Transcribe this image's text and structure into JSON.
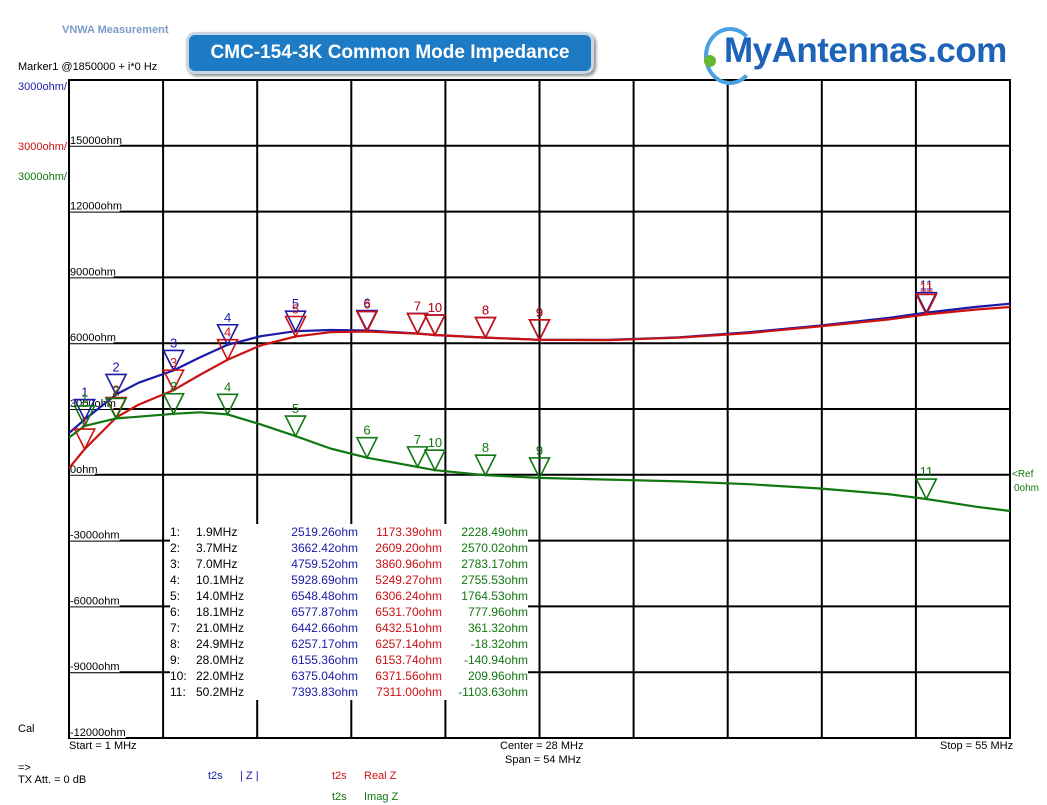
{
  "app": {
    "title": "VNWA Measurement"
  },
  "header": {
    "marker_info": "Marker1 @1850000 + i*0 Hz",
    "banner_title": "CMC-154-3K Common Mode Impedance",
    "logo_text": "MyAntennas.com"
  },
  "scales": [
    {
      "label": "3000ohm/",
      "color": "#1a1aaa"
    },
    {
      "label": "3000ohm/",
      "color": "#cc1111"
    },
    {
      "label": "3000ohm/",
      "color": "#117711"
    }
  ],
  "footer": {
    "start": "Start = 1 MHz",
    "center": "Center = 28 MHz",
    "span": "Span = 54 MHz",
    "stop": "Stop = 55 MHz",
    "cal": "Cal",
    "arrow": "=>",
    "tx_att": "TX Att.  = 0 dB",
    "ref_label": "<Ref",
    "ref_value": "0ohm",
    "legend": [
      {
        "tag": "t2s",
        "name": "| Z |",
        "color": "#1a1aaa"
      },
      {
        "tag": "t2s",
        "name": "Real Z",
        "color": "#cc1111"
      },
      {
        "tag": "t2s",
        "name": "Imag Z",
        "color": "#117711"
      }
    ]
  },
  "marker_table": [
    {
      "id": "1:",
      "freq": "1.9MHz",
      "z": "2519.26ohm",
      "re": "1173.39ohm",
      "im": "2228.49ohm"
    },
    {
      "id": "2:",
      "freq": "3.7MHz",
      "z": "3662.42ohm",
      "re": "2609.20ohm",
      "im": "2570.02ohm"
    },
    {
      "id": "3:",
      "freq": "7.0MHz",
      "z": "4759.52ohm",
      "re": "3860.96ohm",
      "im": "2783.17ohm"
    },
    {
      "id": "4:",
      "freq": "10.1MHz",
      "z": "5928.69ohm",
      "re": "5249.27ohm",
      "im": "2755.53ohm"
    },
    {
      "id": "5:",
      "freq": "14.0MHz",
      "z": "6548.48ohm",
      "re": "6306.24ohm",
      "im": "1764.53ohm"
    },
    {
      "id": "6:",
      "freq": "18.1MHz",
      "z": "6577.87ohm",
      "re": "6531.70ohm",
      "im": "777.96ohm"
    },
    {
      "id": "7:",
      "freq": "21.0MHz",
      "z": "6442.66ohm",
      "re": "6432.51ohm",
      "im": "361.32ohm"
    },
    {
      "id": "8:",
      "freq": "24.9MHz",
      "z": "6257.17ohm",
      "re": "6257.14ohm",
      "im": "-18.32ohm"
    },
    {
      "id": "9:",
      "freq": "28.0MHz",
      "z": "6155.36ohm",
      "re": "6153.74ohm",
      "im": "-140.94ohm"
    },
    {
      "id": "10:",
      "freq": "22.0MHz",
      "z": "6375.04ohm",
      "re": "6371.56ohm",
      "im": "209.96ohm"
    },
    {
      "id": "11:",
      "freq": "50.2MHz",
      "z": "7393.83ohm",
      "re": "7311.00ohm",
      "im": "-1103.63ohm"
    }
  ],
  "chart_data": {
    "type": "line",
    "xlim": [
      1,
      55
    ],
    "ylim": [
      -12000,
      18000
    ],
    "y_ticks": [
      {
        "value": 15000,
        "label": "15000ohm"
      },
      {
        "value": 12000,
        "label": "12000ohm"
      },
      {
        "value": 9000,
        "label": "9000ohm"
      },
      {
        "value": 6000,
        "label": "6000ohm"
      },
      {
        "value": 3000,
        "label": "3000ohm"
      },
      {
        "value": 0,
        "label": "0ohm"
      },
      {
        "value": -3000,
        "label": "-3000ohm"
      },
      {
        "value": -6000,
        "label": "-6000ohm"
      },
      {
        "value": -9000,
        "label": "-9000ohm"
      },
      {
        "value": -12000,
        "label": "-12000ohm"
      }
    ],
    "grid": true,
    "series": [
      {
        "name": "| Z |",
        "color": "#1a1aaa",
        "x": [
          1,
          1.9,
          3.7,
          5,
          7,
          8.5,
          10.1,
          12,
          14,
          16,
          18.1,
          21,
          22,
          24.9,
          28,
          32,
          36,
          40,
          44,
          48,
          50.2,
          53,
          55
        ],
        "y": [
          1900,
          2519,
          3662,
          4200,
          4760,
          5350,
          5929,
          6320,
          6548,
          6600,
          6578,
          6443,
          6375,
          6257,
          6155,
          6150,
          6270,
          6500,
          6800,
          7150,
          7394,
          7650,
          7800
        ]
      },
      {
        "name": "Real Z",
        "color": "#cc1111",
        "x": [
          1,
          1.9,
          3.7,
          5,
          7,
          8.5,
          10.1,
          12,
          14,
          16,
          18.1,
          21,
          22,
          24.9,
          28,
          32,
          36,
          40,
          44,
          48,
          50.2,
          53,
          55
        ],
        "y": [
          300,
          1173,
          2609,
          3200,
          3861,
          4550,
          5249,
          5900,
          6306,
          6500,
          6532,
          6433,
          6372,
          6257,
          6154,
          6140,
          6250,
          6460,
          6760,
          7080,
          7311,
          7530,
          7650
        ]
      },
      {
        "name": "Imag Z",
        "color": "#117711",
        "x": [
          1,
          1.9,
          3.7,
          5,
          7,
          8.5,
          10.1,
          12,
          14,
          16,
          18.1,
          21,
          22,
          24.9,
          28,
          32,
          36,
          40,
          44,
          48,
          50.2,
          53,
          55
        ],
        "y": [
          1700,
          2228,
          2570,
          2650,
          2783,
          2850,
          2756,
          2300,
          1765,
          1200,
          778,
          361,
          210,
          -18,
          -141,
          -220,
          -300,
          -430,
          -620,
          -880,
          -1104,
          -1450,
          -1650
        ]
      }
    ],
    "markers": [
      {
        "label": "1",
        "x": 1.9,
        "z": 2519,
        "re": 1173,
        "im": 2228
      },
      {
        "label": "2",
        "x": 3.7,
        "z": 3662,
        "re": 2609,
        "im": 2570
      },
      {
        "label": "3",
        "x": 7.0,
        "z": 4760,
        "re": 3861,
        "im": 2783
      },
      {
        "label": "4",
        "x": 10.1,
        "z": 5929,
        "re": 5249,
        "im": 2756
      },
      {
        "label": "5",
        "x": 14.0,
        "z": 6548,
        "re": 6306,
        "im": 1765
      },
      {
        "label": "6",
        "x": 18.1,
        "z": 6578,
        "re": 6532,
        "im": 778
      },
      {
        "label": "7",
        "x": 21.0,
        "z": 6443,
        "re": 6433,
        "im": 361
      },
      {
        "label": "8",
        "x": 24.9,
        "z": 6257,
        "re": 6257,
        "im": -18
      },
      {
        "label": "9",
        "x": 28.0,
        "z": 6155,
        "re": 6154,
        "im": -141
      },
      {
        "label": "10",
        "x": 22.0,
        "z": 6375,
        "re": 6372,
        "im": 210
      },
      {
        "label": "11",
        "x": 50.2,
        "z": 7394,
        "re": 7311,
        "im": -1104
      }
    ]
  }
}
